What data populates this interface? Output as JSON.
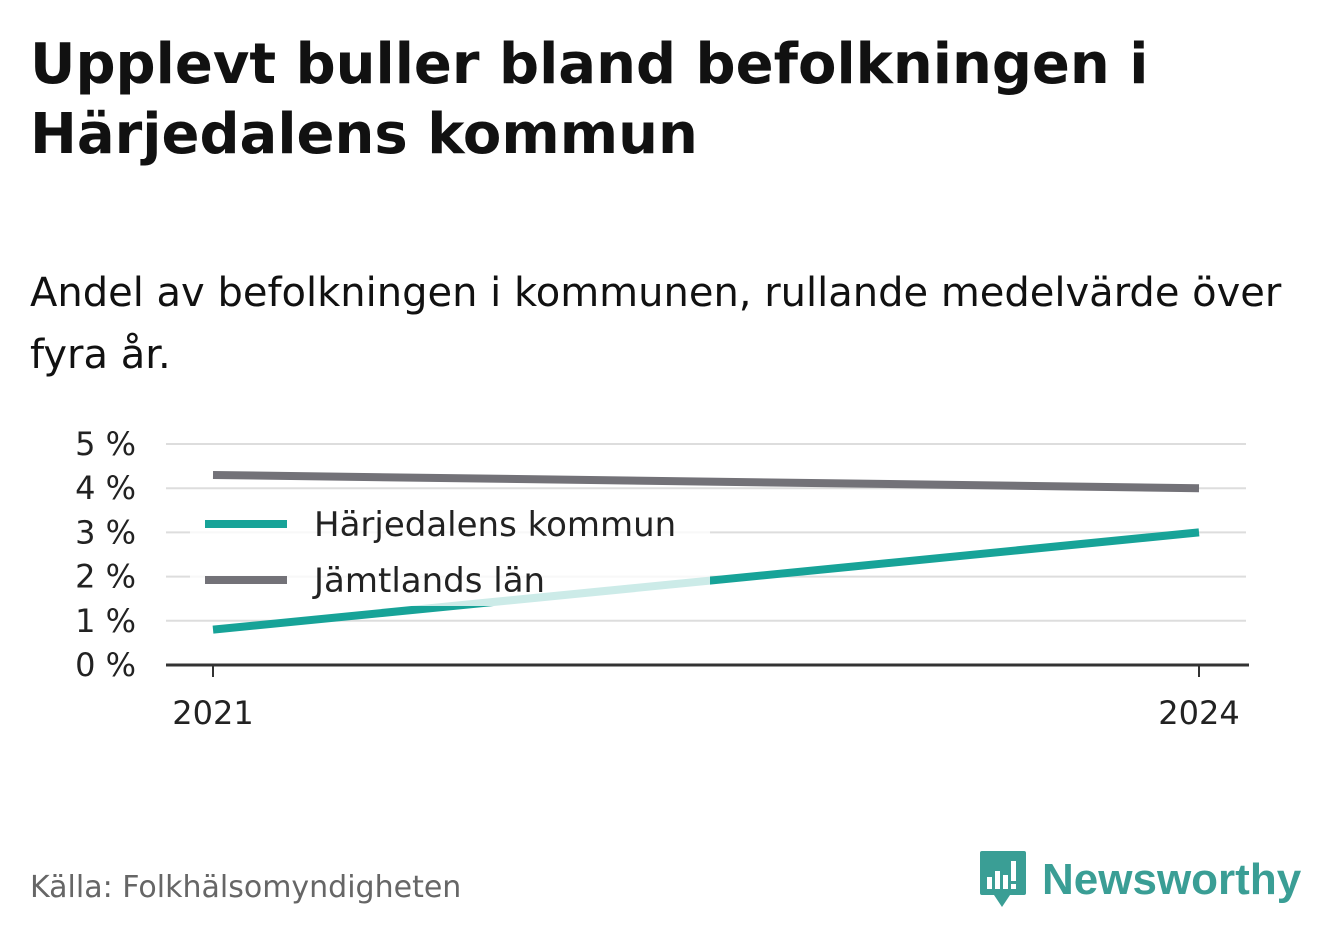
{
  "title": "Upplevt buller bland befolkningen i Härjedalens kommun",
  "subtitle": "Andel av befolkningen i kommunen, rullande medelvärde över fyra år.",
  "source": "Källa: Folkhälsomyndigheten",
  "brand": {
    "name": "Newsworthy",
    "icon": "newsworthy-logo-icon",
    "color": "#3a9e95"
  },
  "chart_data": {
    "type": "line",
    "x": [
      2021,
      2024
    ],
    "x_tick_labels": [
      "2021",
      "2024"
    ],
    "y_ticks": [
      0,
      1,
      2,
      3,
      4,
      5
    ],
    "y_tick_labels": [
      "0 %",
      "1 %",
      "2 %",
      "3 %",
      "4 %",
      "5 %"
    ],
    "ylim": [
      0,
      5
    ],
    "grid": true,
    "legend_position": "left",
    "series": [
      {
        "name": "Härjedalens kommun",
        "values": [
          0.8,
          3.0
        ],
        "color": "#17a398"
      },
      {
        "name": "Jämtlands län",
        "values": [
          4.3,
          4.0
        ],
        "color": "#737278"
      }
    ]
  }
}
